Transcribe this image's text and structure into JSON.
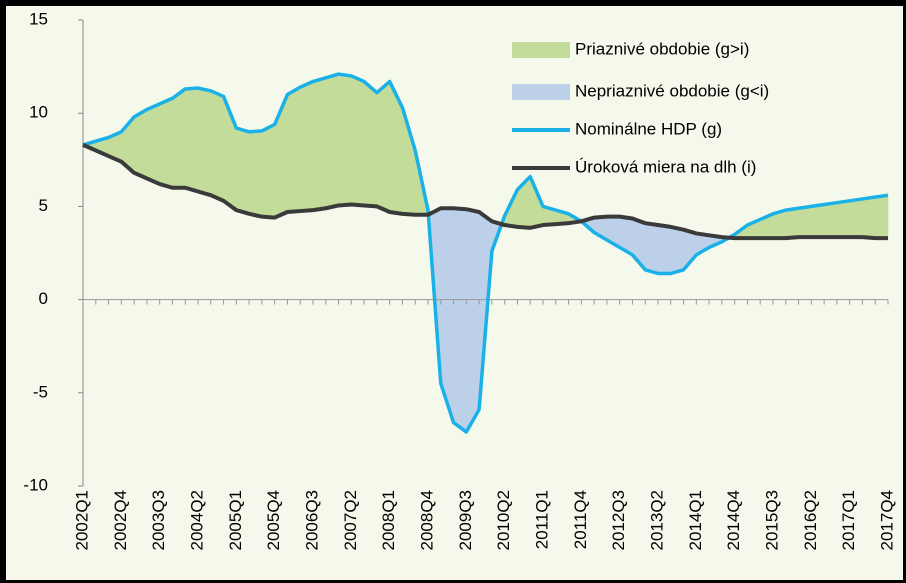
{
  "chart_data": {
    "type": "line",
    "categories": [
      "2002Q1",
      null,
      null,
      "2002Q4",
      null,
      null,
      "2003Q3",
      null,
      null,
      "2004Q2",
      null,
      null,
      "2005Q1",
      null,
      null,
      "2005Q4",
      null,
      null,
      "2006Q3",
      null,
      null,
      "2007Q2",
      null,
      null,
      "2008Q1",
      null,
      null,
      "2008Q4",
      null,
      null,
      "2009Q3",
      null,
      null,
      "2010Q2",
      null,
      null,
      "2011Q1",
      null,
      null,
      "2011Q4",
      null,
      null,
      "2012Q3",
      null,
      null,
      "2013Q2",
      null,
      null,
      "2014Q1",
      null,
      null,
      "2014Q4",
      null,
      null,
      "2015Q3",
      null,
      null,
      "2016Q2",
      null,
      null,
      "2017Q1",
      null,
      null,
      "2017Q4"
    ],
    "series": [
      {
        "name": "Nominálne HDP (g)",
        "color": "#1ab0e8",
        "values": [
          8.3,
          8.5,
          8.7,
          9.0,
          9.8,
          10.2,
          10.5,
          10.8,
          11.3,
          11.35,
          11.2,
          10.9,
          9.2,
          9.0,
          9.05,
          9.4,
          11.0,
          11.4,
          11.7,
          11.9,
          12.1,
          12.0,
          11.7,
          11.1,
          11.7,
          10.3,
          8.0,
          4.8,
          -4.5,
          -6.6,
          -7.1,
          -5.9,
          2.6,
          4.5,
          5.9,
          6.6,
          5.0,
          4.8,
          4.6,
          4.2,
          3.6,
          3.2,
          2.8,
          2.4,
          1.6,
          1.4,
          1.4,
          1.6,
          2.4,
          2.8,
          3.1,
          3.5,
          4.0,
          4.3,
          4.6,
          4.8,
          4.9,
          5.0,
          5.1,
          5.2,
          5.3,
          5.4,
          5.5,
          5.6
        ]
      },
      {
        "name": "Úroková miera na dlh (i)",
        "color": "#3a3a3a",
        "values": [
          8.3,
          8.0,
          7.7,
          7.4,
          6.8,
          6.5,
          6.2,
          6.0,
          6.0,
          5.8,
          5.6,
          5.3,
          4.8,
          4.6,
          4.45,
          4.4,
          4.7,
          4.75,
          4.8,
          4.9,
          5.05,
          5.1,
          5.05,
          5.0,
          4.7,
          4.6,
          4.55,
          4.55,
          4.9,
          4.9,
          4.85,
          4.7,
          4.2,
          4.0,
          3.9,
          3.85,
          4.0,
          4.05,
          4.1,
          4.2,
          4.4,
          4.45,
          4.45,
          4.35,
          4.1,
          4.0,
          3.9,
          3.75,
          3.55,
          3.45,
          3.35,
          3.3,
          3.3,
          3.3,
          3.3,
          3.3,
          3.35,
          3.35,
          3.35,
          3.35,
          3.35,
          3.35,
          3.3,
          3.3
        ]
      }
    ],
    "fills": [
      {
        "name": "Priaznivé obdobie (g>i)",
        "color": "#c4dc9a"
      },
      {
        "name": "Nepriaznivé obdobie (g<i)",
        "color": "#bcd0ea"
      }
    ],
    "ylim": [
      -10,
      15
    ],
    "yticks": [
      -10,
      -5,
      0,
      5,
      10,
      15
    ],
    "grid": false,
    "legend": "top-right"
  }
}
